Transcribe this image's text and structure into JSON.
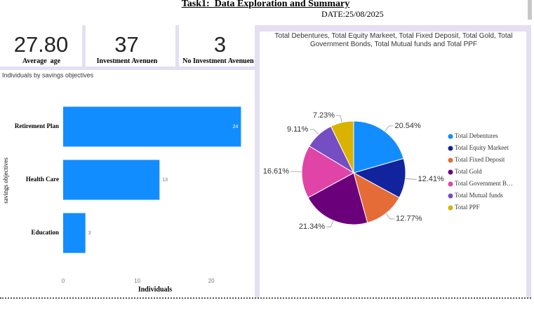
{
  "header": {
    "title": "Task1:  Data Exploration and Summary",
    "date": "DATE:25/08/2025"
  },
  "cards": [
    {
      "value": "27.80",
      "label": "Average  age"
    },
    {
      "value": "37",
      "label": "Investment Avenuen"
    },
    {
      "value": "3",
      "label": "No Investment Avenuen"
    }
  ],
  "chart_data": [
    {
      "type": "bar",
      "orientation": "horizontal",
      "title": "Individuals by savings objectives",
      "categories": [
        "Retirement Plan",
        "Health Care",
        "Education"
      ],
      "values": [
        24,
        13,
        3
      ],
      "color": "#118dff",
      "xlim": [
        0,
        25
      ],
      "xticks": [
        0,
        10,
        20
      ],
      "xlabel": "Individuals",
      "ylabel": "savings objectives"
    },
    {
      "type": "pie",
      "title": "Total Debentures, Total Equity Markeet, Total Fixed Deposit, Total Gold, Total Government Bonds, Total Mutual funds and Total PPF",
      "categories": [
        "Total Debentures",
        "Total Equity Markeet",
        "Total Fixed Deposit",
        "Total Gold",
        "Total Government B…",
        "Total Mutual funds",
        "Total PPF"
      ],
      "values": [
        20.54,
        12.41,
        12.77,
        21.34,
        16.61,
        9.11,
        7.23
      ],
      "value_labels": [
        "20.54%",
        "12.41%",
        "12.77%",
        "21.34%",
        "16.61%",
        "9.11%",
        "7.23%"
      ],
      "colors": [
        "#118dff",
        "#12239e",
        "#e66c37",
        "#6b007b",
        "#e044a7",
        "#744ec2",
        "#d9b300"
      ],
      "legend": "right"
    }
  ]
}
